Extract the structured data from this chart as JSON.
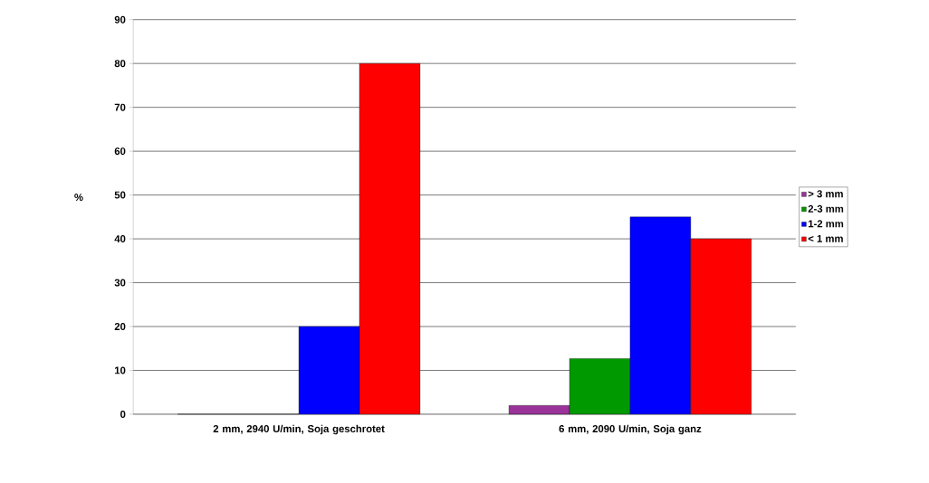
{
  "chart_data": {
    "type": "bar",
    "ylabel": "%",
    "categories": [
      "2 mm, 2940 U/min, Soja geschrotet",
      "6 mm, 2090 U/min, Soja ganz"
    ],
    "series": [
      {
        "name": "> 3 mm",
        "color": "#993399",
        "values": [
          0,
          2
        ]
      },
      {
        "name": "2-3 mm",
        "color": "#009900",
        "values": [
          0,
          12.7
        ]
      },
      {
        "name": "1-2 mm",
        "color": "#0000ff",
        "values": [
          20,
          45
        ]
      },
      {
        "name": "< 1 mm",
        "color": "#ff0000",
        "values": [
          80,
          40
        ]
      }
    ],
    "ylim": [
      0,
      90
    ],
    "yticks": [
      0,
      10,
      20,
      30,
      40,
      50,
      60,
      70,
      80,
      90
    ],
    "grid": "y",
    "legend": "right"
  }
}
